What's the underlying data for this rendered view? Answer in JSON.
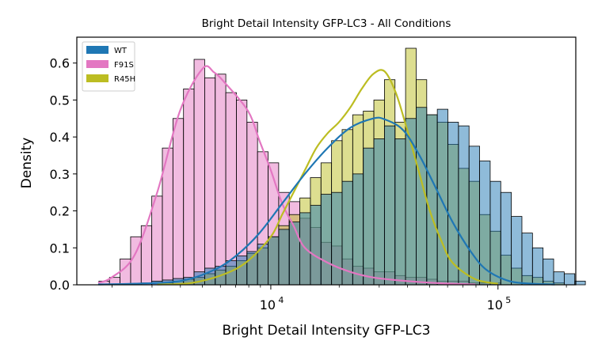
{
  "chart_data": {
    "type": "histogram",
    "title": "Bright Detail Intensity GFP-LC3 - All Conditions",
    "xlabel": "Bright Detail Intensity GFP-LC3",
    "ylabel": "Density",
    "x_scale": "log",
    "xlim": [
      1400,
      220000
    ],
    "ylim": [
      0,
      0.67
    ],
    "y_ticks": [
      0.0,
      0.1,
      0.2,
      0.3,
      0.4,
      0.5,
      0.6
    ],
    "y_tick_labels": [
      "0.0",
      "0.1",
      "0.2",
      "0.3",
      "0.4",
      "0.5",
      "0.6"
    ],
    "x_major_ticks": [
      10000,
      100000
    ],
    "x_major_tick_labels": [
      {
        "base": "10",
        "exp": "4"
      },
      {
        "base": "10",
        "exp": "5"
      }
    ],
    "x_minor_ticks": [
      2000,
      3000,
      4000,
      5000,
      6000,
      7000,
      8000,
      9000,
      20000,
      30000,
      40000,
      50000,
      60000,
      70000,
      80000,
      90000,
      200000
    ],
    "grid": false,
    "legend": "top-left",
    "bins_log10": {
      "start": 3.2433,
      "width": 0.04655,
      "count": 46
    },
    "series": [
      {
        "name": "WT",
        "color": "#1f77b4",
        "alpha": 0.5,
        "densities": [
          0,
          0,
          0,
          0,
          0.005,
          0.01,
          0.013,
          0.017,
          0.02,
          0.035,
          0.045,
          0.05,
          0.065,
          0.078,
          0.09,
          0.11,
          0.13,
          0.15,
          0.17,
          0.195,
          0.215,
          0.245,
          0.25,
          0.28,
          0.3,
          0.37,
          0.395,
          0.43,
          0.395,
          0.45,
          0.48,
          0.46,
          0.475,
          0.44,
          0.43,
          0.375,
          0.335,
          0.28,
          0.25,
          0.185,
          0.14,
          0.1,
          0.07,
          0.035,
          0.03,
          0.01
        ],
        "kde": [
          [
            3.24,
            0.001
          ],
          [
            3.4,
            0.003
          ],
          [
            3.6,
            0.01
          ],
          [
            3.75,
            0.04
          ],
          [
            3.85,
            0.08
          ],
          [
            3.95,
            0.14
          ],
          [
            4.05,
            0.22
          ],
          [
            4.15,
            0.3
          ],
          [
            4.25,
            0.37
          ],
          [
            4.35,
            0.425
          ],
          [
            4.45,
            0.45
          ],
          [
            4.5,
            0.448
          ],
          [
            4.58,
            0.42
          ],
          [
            4.65,
            0.355
          ],
          [
            4.72,
            0.27
          ],
          [
            4.8,
            0.17
          ],
          [
            4.88,
            0.09
          ],
          [
            4.95,
            0.04
          ],
          [
            5.05,
            0.01
          ],
          [
            5.15,
            0.003
          ],
          [
            5.25,
            0.001
          ]
        ]
      },
      {
        "name": "F91S",
        "color": "#e377c2",
        "alpha": 0.5,
        "densities": [
          0.01,
          0.02,
          0.07,
          0.13,
          0.16,
          0.24,
          0.37,
          0.45,
          0.53,
          0.61,
          0.56,
          0.57,
          0.52,
          0.5,
          0.44,
          0.36,
          0.33,
          0.25,
          0.225,
          0.18,
          0.155,
          0.115,
          0.105,
          0.07,
          0.05,
          0.045,
          0.035,
          0.035,
          0.025,
          0.02,
          0.02,
          0.015,
          0.01,
          0.01,
          0.01,
          0.005,
          0.005,
          0.005,
          0,
          0,
          0,
          0,
          0,
          0,
          0,
          0
        ],
        "kde": [
          [
            3.24,
            0.005
          ],
          [
            3.3,
            0.02
          ],
          [
            3.4,
            0.08
          ],
          [
            3.5,
            0.25
          ],
          [
            3.6,
            0.47
          ],
          [
            3.7,
            0.585
          ],
          [
            3.75,
            0.575
          ],
          [
            3.8,
            0.545
          ],
          [
            3.9,
            0.47
          ],
          [
            3.95,
            0.39
          ],
          [
            4.0,
            0.31
          ],
          [
            4.05,
            0.22
          ],
          [
            4.1,
            0.16
          ],
          [
            4.15,
            0.1
          ],
          [
            4.25,
            0.06
          ],
          [
            4.35,
            0.035
          ],
          [
            4.45,
            0.02
          ],
          [
            4.6,
            0.01
          ],
          [
            4.75,
            0.004
          ],
          [
            4.9,
            0.001
          ]
        ]
      },
      {
        "name": "R45H",
        "color": "#bcbd22",
        "alpha": 0.5,
        "densities": [
          0,
          0,
          0,
          0,
          0,
          0,
          0.005,
          0.01,
          0.015,
          0.02,
          0.03,
          0.04,
          0.05,
          0.065,
          0.085,
          0.1,
          0.13,
          0.16,
          0.19,
          0.235,
          0.29,
          0.33,
          0.39,
          0.42,
          0.46,
          0.47,
          0.5,
          0.555,
          0.44,
          0.64,
          0.555,
          0.46,
          0.44,
          0.38,
          0.315,
          0.28,
          0.19,
          0.145,
          0.08,
          0.045,
          0.025,
          0.02,
          0.01,
          0.005,
          0,
          0
        ],
        "kde": [
          [
            3.5,
            0.001
          ],
          [
            3.65,
            0.005
          ],
          [
            3.8,
            0.03
          ],
          [
            3.9,
            0.065
          ],
          [
            4.0,
            0.13
          ],
          [
            4.05,
            0.19
          ],
          [
            4.1,
            0.25
          ],
          [
            4.15,
            0.31
          ],
          [
            4.2,
            0.37
          ],
          [
            4.25,
            0.41
          ],
          [
            4.3,
            0.44
          ],
          [
            4.35,
            0.48
          ],
          [
            4.4,
            0.53
          ],
          [
            4.45,
            0.57
          ],
          [
            4.5,
            0.578
          ],
          [
            4.55,
            0.52
          ],
          [
            4.6,
            0.42
          ],
          [
            4.65,
            0.31
          ],
          [
            4.7,
            0.2
          ],
          [
            4.75,
            0.12
          ],
          [
            4.8,
            0.06
          ],
          [
            4.9,
            0.015
          ],
          [
            5.0,
            0.003
          ]
        ]
      }
    ],
    "draw_order": [
      "F91S",
      "R45H",
      "WT"
    ],
    "kde_order": [
      "F91S",
      "R45H",
      "WT"
    ]
  }
}
